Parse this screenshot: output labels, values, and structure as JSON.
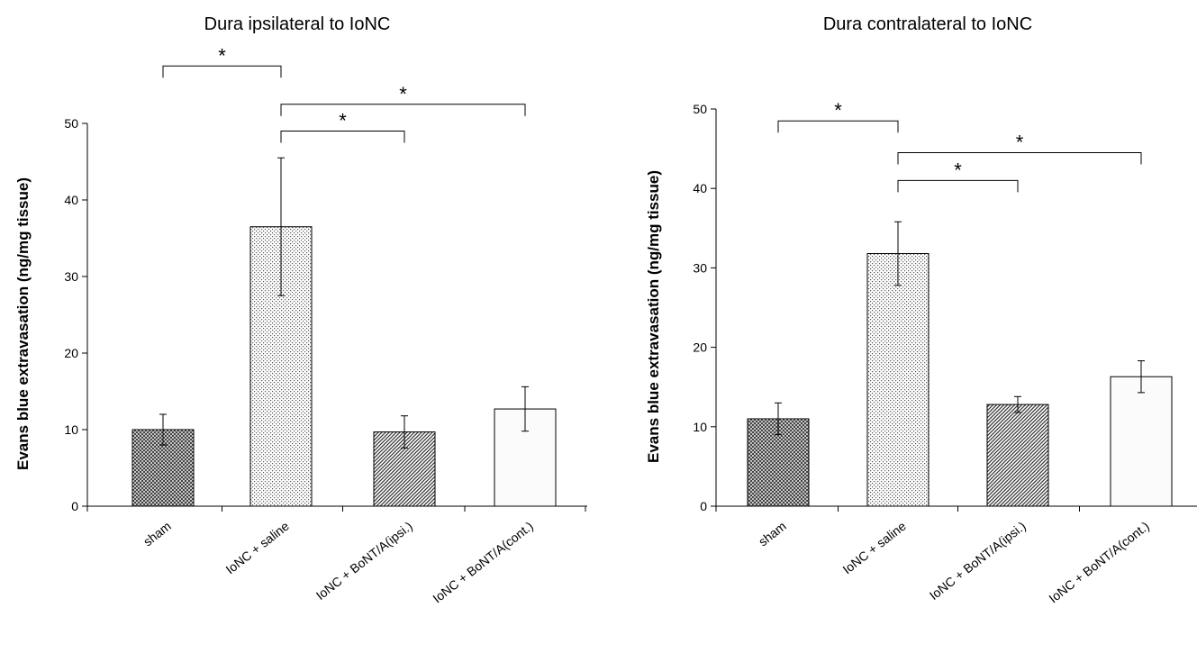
{
  "chart_data": [
    {
      "type": "bar",
      "title": "Dura ipsilateral to IoNC",
      "ylabel": "Evans blue extravasation (ng/mg tissue)",
      "xlabel": "",
      "ylim": [
        0,
        50
      ],
      "yticks": [
        "0",
        "10",
        "20",
        "30",
        "40",
        "50"
      ],
      "categories": [
        "sham",
        "IoNC + saline",
        "IoNC + BoNT/A(ipsi.)",
        "IoNC + BoNT/A(cont.)"
      ],
      "values": [
        10.0,
        36.5,
        9.7,
        12.7
      ],
      "errors": [
        2.0,
        9.0,
        2.1,
        2.9
      ],
      "patterns": [
        "crosshatch",
        "dots",
        "diagonal",
        "blank"
      ],
      "significance": [
        {
          "from": 0,
          "to": 1,
          "label": "*",
          "level": 57.5
        },
        {
          "from": 1,
          "to": 3,
          "label": "*",
          "level": 52.5
        },
        {
          "from": 1,
          "to": 2,
          "label": "*",
          "level": 49.0
        }
      ],
      "grid": false,
      "legend": "none"
    },
    {
      "type": "bar",
      "title": "Dura contralateral to IoNC",
      "ylabel": "Evans blue extravasation (ng/mg tissue)",
      "xlabel": "",
      "ylim": [
        0,
        50
      ],
      "yticks": [
        "0",
        "10",
        "20",
        "30",
        "40",
        "50"
      ],
      "categories": [
        "sham",
        "IoNC + saline",
        "IoNC + BoNT/A(ipsi.)",
        "IoNC + BoNT/A(cont.)"
      ],
      "values": [
        11.0,
        31.8,
        12.8,
        16.3
      ],
      "errors": [
        2.0,
        4.0,
        1.0,
        2.0
      ],
      "patterns": [
        "crosshatch",
        "dots",
        "diagonal",
        "blank"
      ],
      "significance": [
        {
          "from": 0,
          "to": 1,
          "label": "*",
          "level": 48.5
        },
        {
          "from": 1,
          "to": 3,
          "label": "*",
          "level": 44.5
        },
        {
          "from": 1,
          "to": 2,
          "label": "*",
          "level": 41.0
        }
      ],
      "grid": false,
      "legend": "none"
    }
  ]
}
